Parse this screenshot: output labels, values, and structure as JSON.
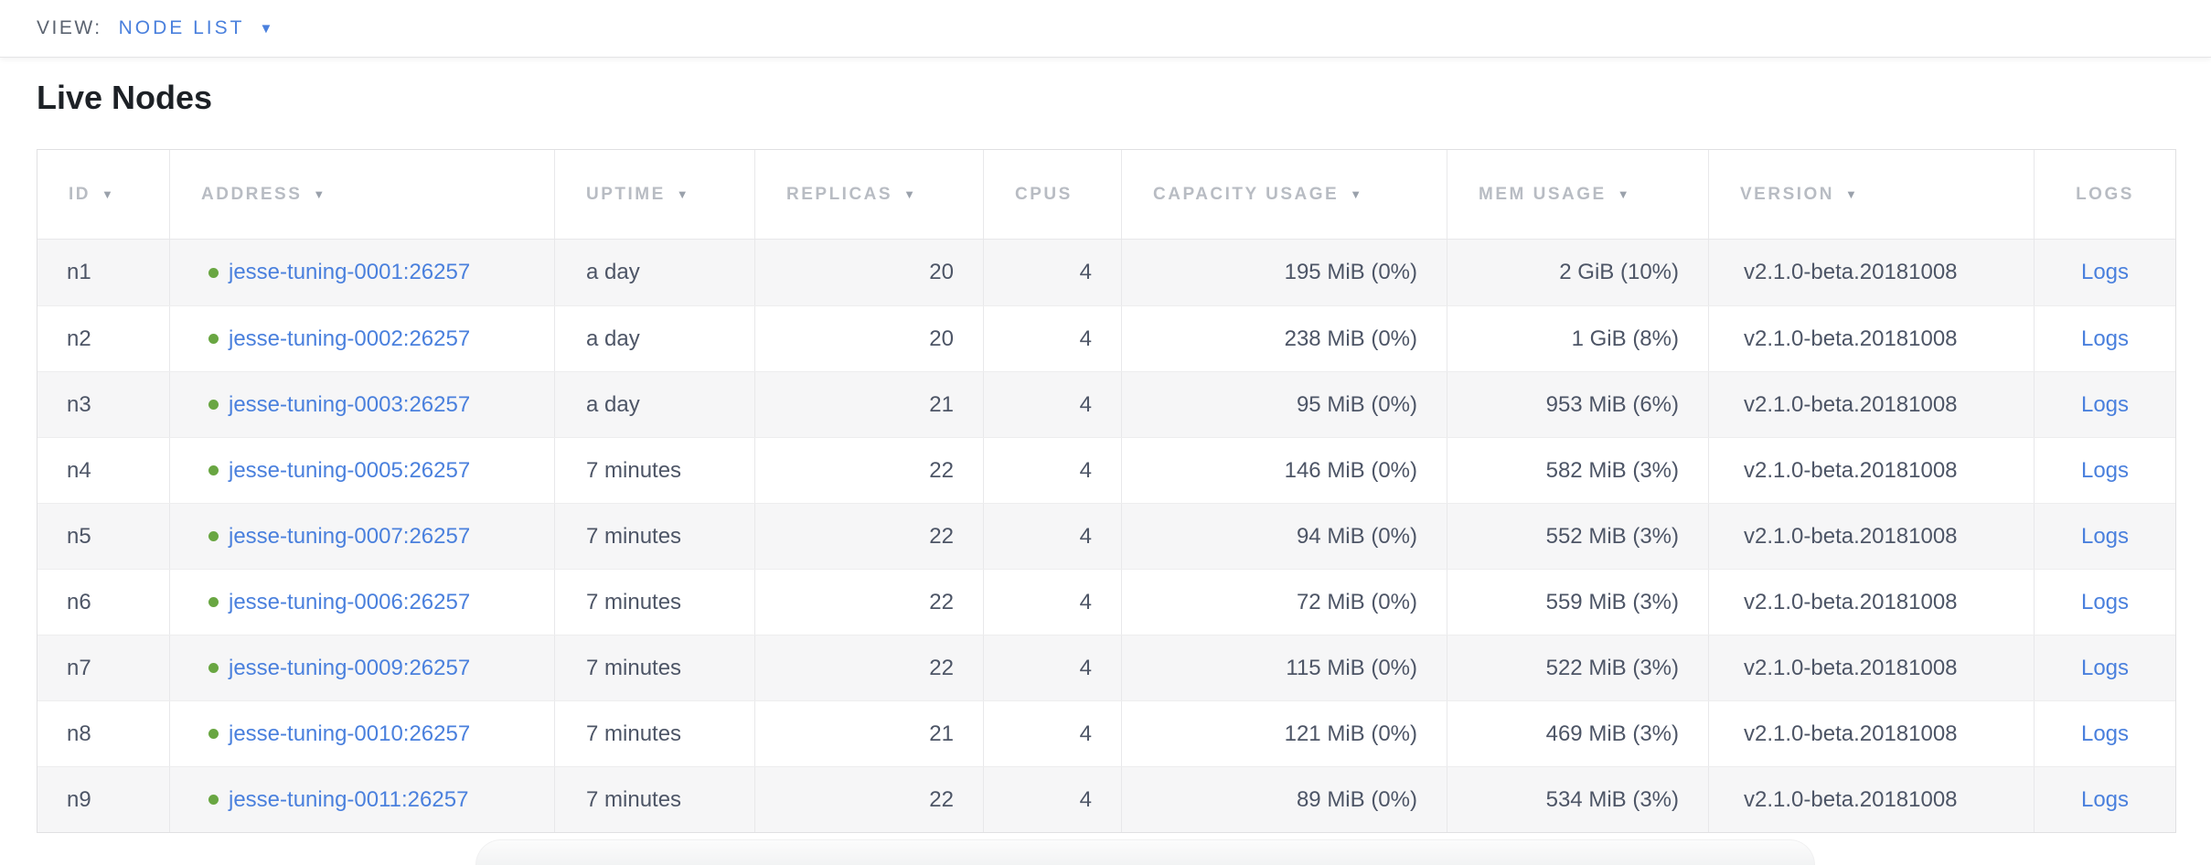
{
  "view_bar": {
    "label": "VIEW:",
    "selected": "NODE LIST",
    "caret_glyph": "▼"
  },
  "page": {
    "title": "Live Nodes"
  },
  "ui": {
    "sort_arrow": "▼",
    "accent_blue": "#4a80dd",
    "live_green": "#69a642",
    "header_gray": "#b8bcc3",
    "cell_text": "#4d5566",
    "alt_row_bg": "#f6f6f7"
  },
  "table": {
    "logs_label": "Logs",
    "columns": [
      {
        "label": "ID",
        "sorted": true
      },
      {
        "label": "ADDRESS",
        "sorted": true
      },
      {
        "label": "UPTIME",
        "sorted": true
      },
      {
        "label": "REPLICAS",
        "sorted": true
      },
      {
        "label": "CPUS",
        "sorted": false
      },
      {
        "label": "CAPACITY USAGE",
        "sorted": true
      },
      {
        "label": "MEM USAGE",
        "sorted": true
      },
      {
        "label": "VERSION",
        "sorted": true
      },
      {
        "label": "LOGS",
        "sorted": false
      }
    ],
    "rows": [
      {
        "id": "n1",
        "address": "jesse-tuning-0001:26257",
        "uptime": "a day",
        "replicas": "20",
        "cpus": "4",
        "capacity": "195 MiB (0%)",
        "mem": "2 GiB (10%)",
        "version": "v2.1.0-beta.20181008"
      },
      {
        "id": "n2",
        "address": "jesse-tuning-0002:26257",
        "uptime": "a day",
        "replicas": "20",
        "cpus": "4",
        "capacity": "238 MiB (0%)",
        "mem": "1 GiB (8%)",
        "version": "v2.1.0-beta.20181008"
      },
      {
        "id": "n3",
        "address": "jesse-tuning-0003:26257",
        "uptime": "a day",
        "replicas": "21",
        "cpus": "4",
        "capacity": "95 MiB (0%)",
        "mem": "953 MiB (6%)",
        "version": "v2.1.0-beta.20181008"
      },
      {
        "id": "n4",
        "address": "jesse-tuning-0005:26257",
        "uptime": "7 minutes",
        "replicas": "22",
        "cpus": "4",
        "capacity": "146 MiB (0%)",
        "mem": "582 MiB (3%)",
        "version": "v2.1.0-beta.20181008"
      },
      {
        "id": "n5",
        "address": "jesse-tuning-0007:26257",
        "uptime": "7 minutes",
        "replicas": "22",
        "cpus": "4",
        "capacity": "94 MiB (0%)",
        "mem": "552 MiB (3%)",
        "version": "v2.1.0-beta.20181008"
      },
      {
        "id": "n6",
        "address": "jesse-tuning-0006:26257",
        "uptime": "7 minutes",
        "replicas": "22",
        "cpus": "4",
        "capacity": "72 MiB (0%)",
        "mem": "559 MiB (3%)",
        "version": "v2.1.0-beta.20181008"
      },
      {
        "id": "n7",
        "address": "jesse-tuning-0009:26257",
        "uptime": "7 minutes",
        "replicas": "22",
        "cpus": "4",
        "capacity": "115 MiB (0%)",
        "mem": "522 MiB (3%)",
        "version": "v2.1.0-beta.20181008"
      },
      {
        "id": "n8",
        "address": "jesse-tuning-0010:26257",
        "uptime": "7 minutes",
        "replicas": "21",
        "cpus": "4",
        "capacity": "121 MiB (0%)",
        "mem": "469 MiB (3%)",
        "version": "v2.1.0-beta.20181008"
      },
      {
        "id": "n9",
        "address": "jesse-tuning-0011:26257",
        "uptime": "7 minutes",
        "replicas": "22",
        "cpus": "4",
        "capacity": "89 MiB (0%)",
        "mem": "534 MiB (3%)",
        "version": "v2.1.0-beta.20181008"
      }
    ]
  }
}
